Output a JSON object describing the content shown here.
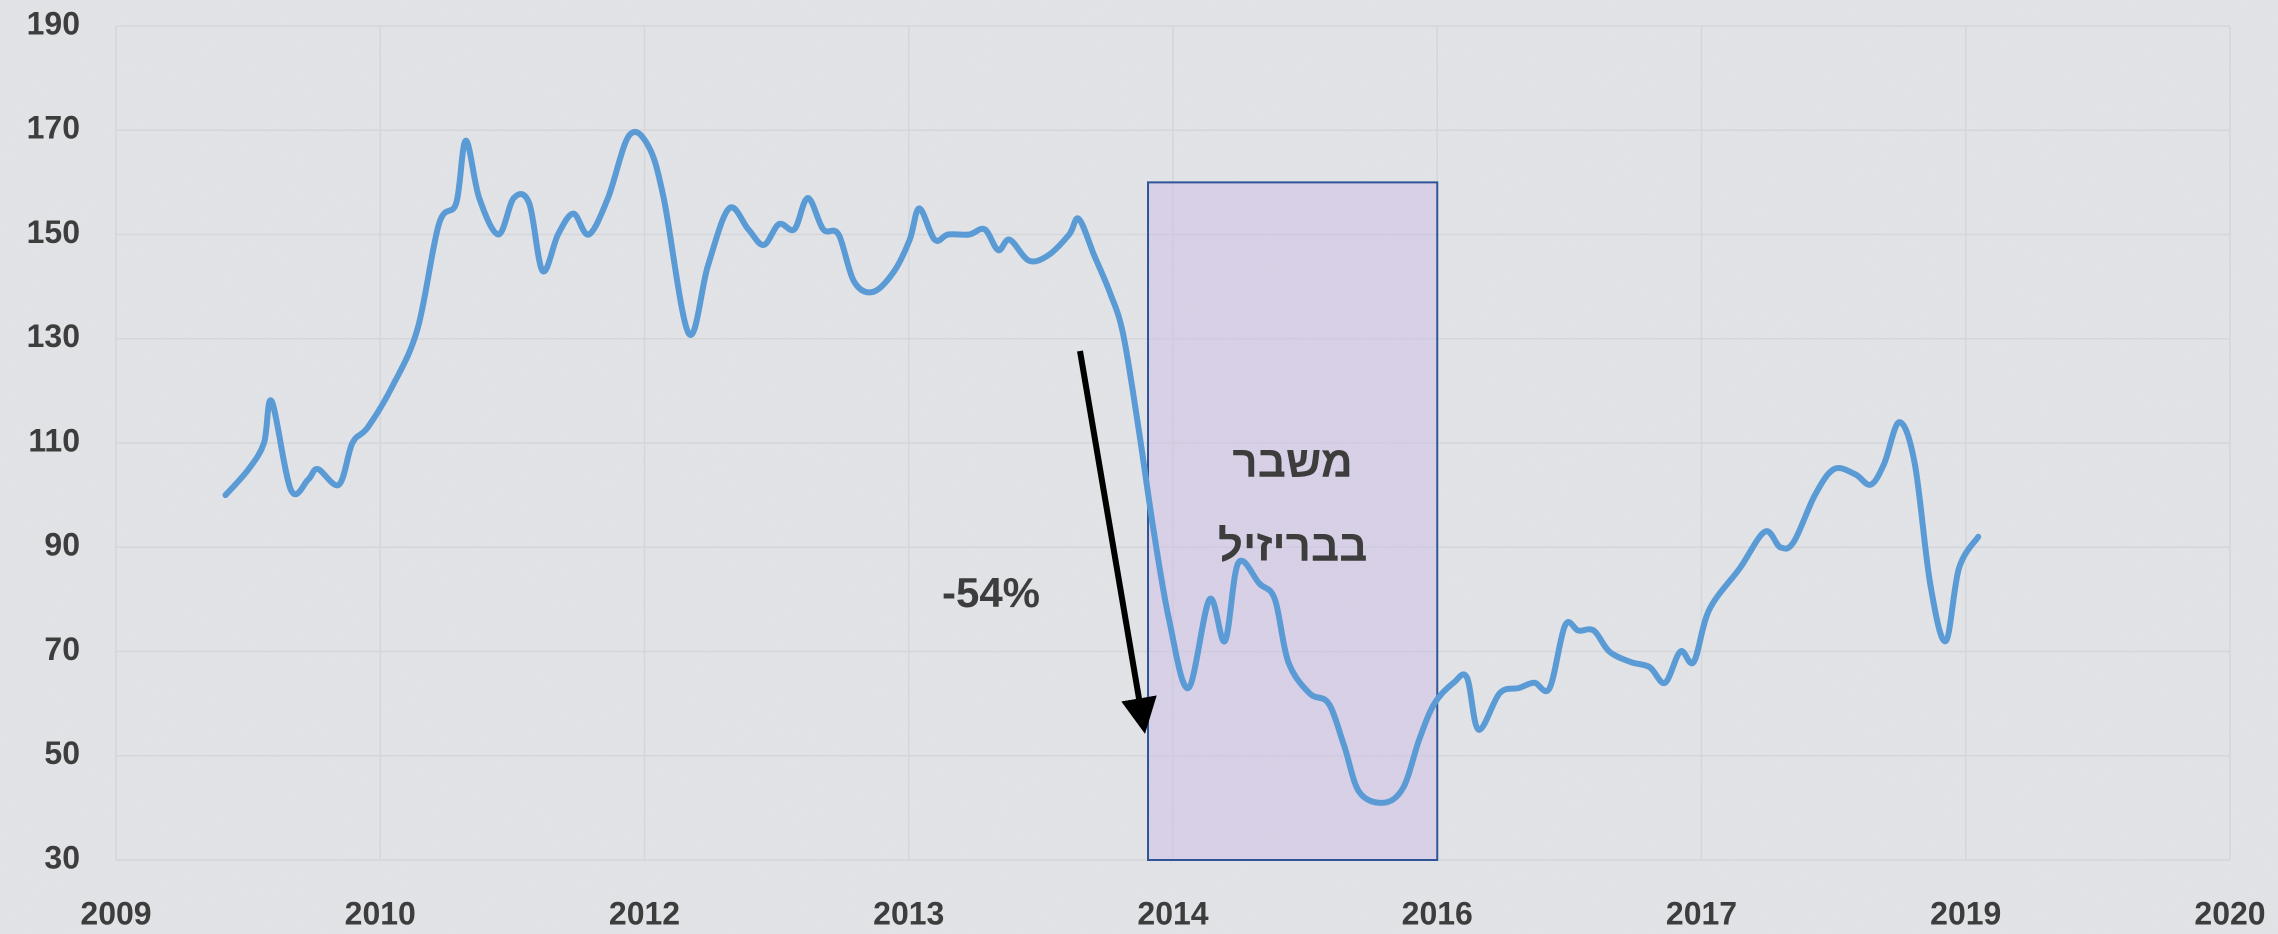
{
  "chart_data": {
    "type": "line",
    "x": [
      2009.57,
      2009.69,
      2009.77,
      2009.81,
      2009.91,
      2010.0,
      2010.05,
      2010.16,
      2010.23,
      2010.31,
      2010.44,
      2010.57,
      2010.68,
      2010.77,
      2010.82,
      2010.89,
      2010.99,
      2011.07,
      2011.15,
      2011.22,
      2011.3,
      2011.38,
      2011.46,
      2011.56,
      2011.67,
      2011.77,
      2011.85,
      2011.98,
      2012.08,
      2012.19,
      2012.29,
      2012.37,
      2012.45,
      2012.53,
      2012.6,
      2012.68,
      2012.76,
      2012.84,
      2012.94,
      2013.05,
      2013.13,
      2013.18,
      2013.26,
      2013.33,
      2013.44,
      2013.52,
      2013.59,
      2013.65,
      2013.75,
      2013.85,
      2013.96,
      2014.01,
      2014.09,
      2014.17,
      2014.24,
      2014.32,
      2014.4,
      2014.48,
      2014.58,
      2014.69,
      2014.77,
      2014.84,
      2014.95,
      2015.03,
      2015.1,
      2015.21,
      2015.31,
      2015.39,
      2015.47,
      2015.6,
      2015.7,
      2015.78,
      2015.86,
      2015.96,
      2016.03,
      2016.09,
      2016.2,
      2016.3,
      2016.38,
      2016.46,
      2016.54,
      2016.61,
      2016.69,
      2016.77,
      2016.88,
      2016.98,
      2017.06,
      2017.14,
      2017.21,
      2017.29,
      2017.45,
      2017.58,
      2017.66,
      2017.73,
      2017.84,
      2017.94,
      2018.05,
      2018.13,
      2018.2,
      2018.28,
      2018.36,
      2018.44,
      2018.52,
      2018.59,
      2018.69
    ],
    "values": [
      100,
      105,
      110,
      118,
      101,
      103,
      105,
      102,
      110,
      113,
      121,
      132,
      152,
      156,
      168,
      157,
      150,
      157,
      156,
      143,
      150,
      154,
      150,
      157,
      169,
      167,
      157,
      131,
      144,
      155,
      151,
      148,
      152,
      151,
      157,
      151,
      150,
      141,
      139,
      143,
      149,
      155,
      149,
      150,
      150,
      151,
      147,
      149,
      145,
      146,
      150,
      153,
      146,
      139,
      131,
      113,
      93,
      76,
      63,
      80,
      72,
      87,
      83,
      80,
      68,
      62,
      60,
      52,
      43,
      41,
      44,
      53,
      60,
      64,
      65,
      55,
      62,
      63,
      64,
      63,
      75,
      74,
      74,
      70,
      68,
      67,
      64,
      70,
      68,
      78,
      86,
      93,
      90,
      91,
      100,
      105,
      104,
      102,
      106,
      114,
      106,
      83,
      72,
      86,
      92
    ],
    "color": "#5b9bd5",
    "xlim": [
      2009,
      2020
    ],
    "xticks": [
      {
        "value": 2009,
        "label": "2009"
      },
      {
        "value": 2010.375,
        "label": "2010"
      },
      {
        "value": 2011.75,
        "label": "2012"
      },
      {
        "value": 2013.125,
        "label": "2013"
      },
      {
        "value": 2014.5,
        "label": "2014"
      },
      {
        "value": 2015.875,
        "label": "2016"
      },
      {
        "value": 2017.25,
        "label": "2017"
      },
      {
        "value": 2018.625,
        "label": "2019"
      },
      {
        "value": 2020,
        "label": "2020"
      }
    ],
    "ylim": [
      30,
      190
    ],
    "yticks": [
      30,
      50,
      70,
      90,
      110,
      130,
      150,
      170,
      190
    ],
    "grid": true,
    "shaded_region": {
      "x": [
        2014.37,
        2015.875
      ],
      "y": [
        30,
        160
      ],
      "label": [
        "משבר",
        "בבריזיל"
      ]
    },
    "annotation": "-54%"
  }
}
